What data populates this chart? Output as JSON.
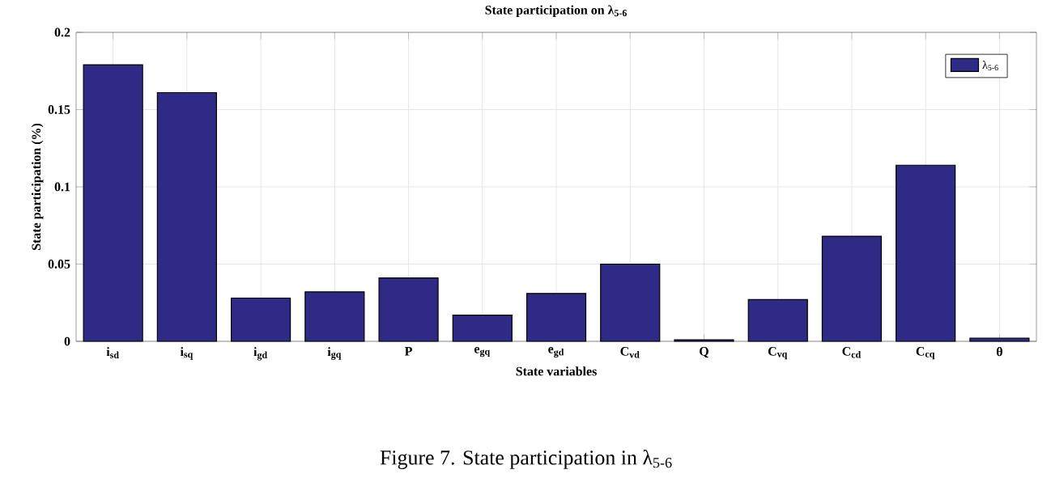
{
  "chart_data": {
    "type": "bar",
    "title": "State participation on λ$_{5-6}$",
    "xlabel": "State variables",
    "ylabel": "State participation (%)",
    "categories": [
      "i$_{sd}$",
      "i$_{sq}$",
      "i$_{gd}$",
      "i$_{gq}$",
      "P",
      "e$_{gq}$",
      "e$_{gd}$",
      "C$_{vd}$",
      "Q",
      "C$_{vq}$",
      "C$_{cd}$",
      "C$_{cq}$",
      "θ"
    ],
    "series": [
      {
        "name": "λ$_{5-6}$",
        "color": "#2e2a85",
        "values": [
          0.179,
          0.161,
          0.028,
          0.032,
          0.041,
          0.017,
          0.031,
          0.05,
          0.001,
          0.027,
          0.068,
          0.114,
          0.002
        ]
      }
    ],
    "ylim": [
      0,
      0.2
    ],
    "yticks": [
      0,
      0.05,
      0.1,
      0.15,
      0.2
    ],
    "grid": true,
    "legend": "top right",
    "annotations": [
      "Figure 7.  State participation in λ$_{5-6}$"
    ]
  }
}
